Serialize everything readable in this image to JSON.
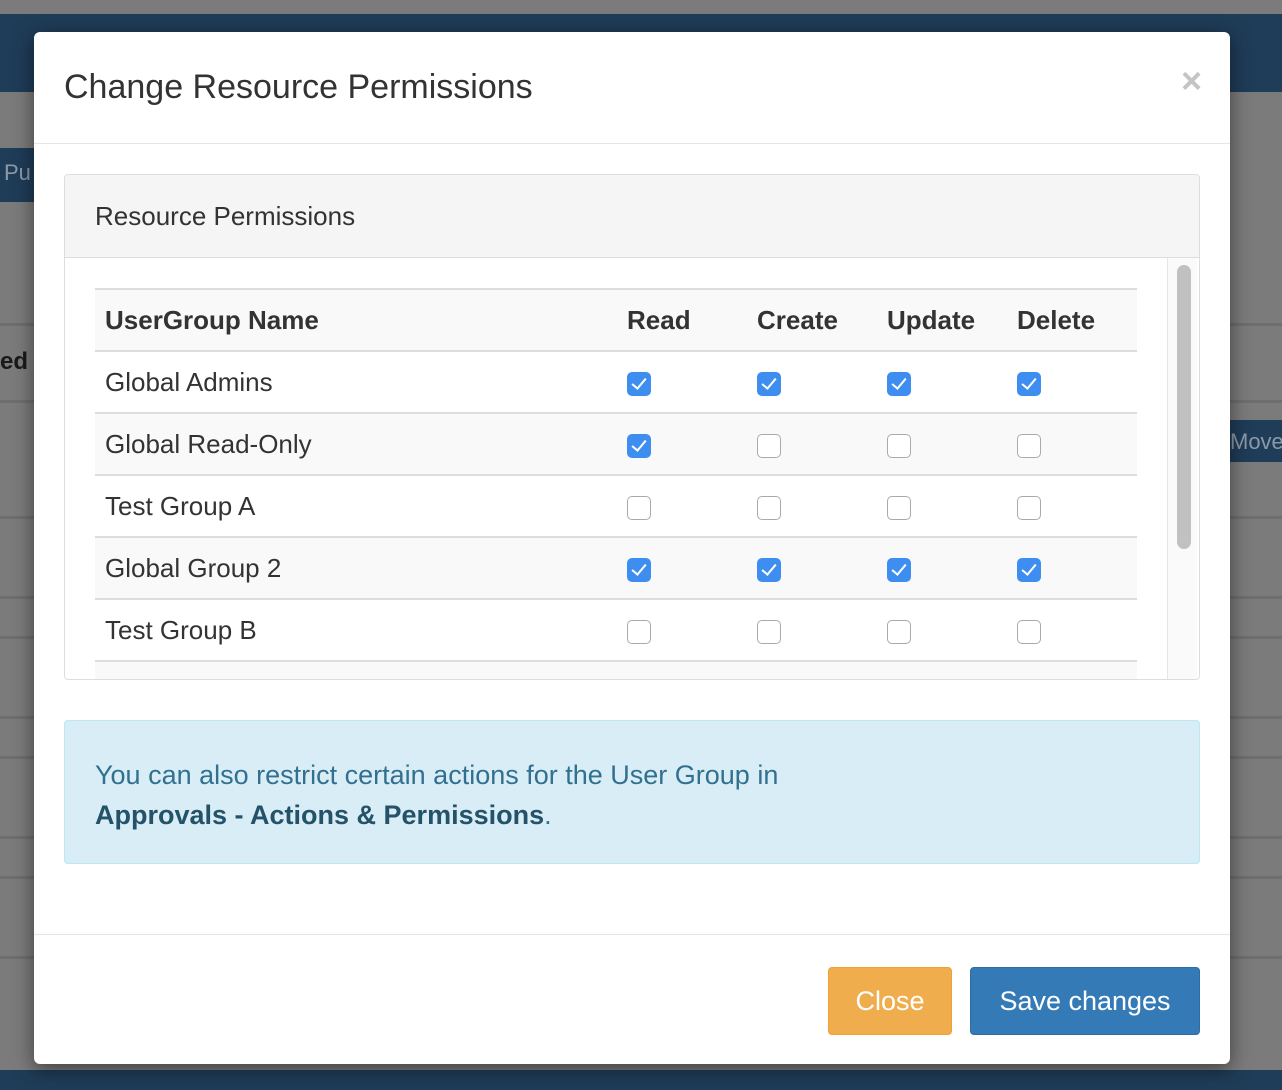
{
  "background": {
    "button_fragment_left": "Pu",
    "text_fragment": "ed",
    "button_fragment_right": "Move"
  },
  "modal": {
    "title": "Change Resource Permissions",
    "close_icon": "×",
    "panel": {
      "heading": "Resource Permissions",
      "columns": [
        "UserGroup Name",
        "Read",
        "Create",
        "Update",
        "Delete"
      ],
      "rows": [
        {
          "name": "Global Admins",
          "read": true,
          "create": true,
          "update": true,
          "delete": true
        },
        {
          "name": "Global Read-Only",
          "read": true,
          "create": false,
          "update": false,
          "delete": false
        },
        {
          "name": "Test Group A",
          "read": false,
          "create": false,
          "update": false,
          "delete": false
        },
        {
          "name": "Global Group 2",
          "read": true,
          "create": true,
          "update": true,
          "delete": true
        },
        {
          "name": "Test Group B",
          "read": false,
          "create": false,
          "update": false,
          "delete": false
        }
      ]
    },
    "info": {
      "text": "You can also restrict certain actions for the User Group in",
      "link": "Approvals - Actions & Permissions",
      "suffix": "."
    },
    "footer": {
      "close_label": "Close",
      "save_label": "Save changes"
    }
  },
  "colors": {
    "checkbox_checked": "#3d8ef0",
    "close_button": "#f0ad4e",
    "save_button": "#337ab7",
    "info_bg": "#d9edf7"
  }
}
